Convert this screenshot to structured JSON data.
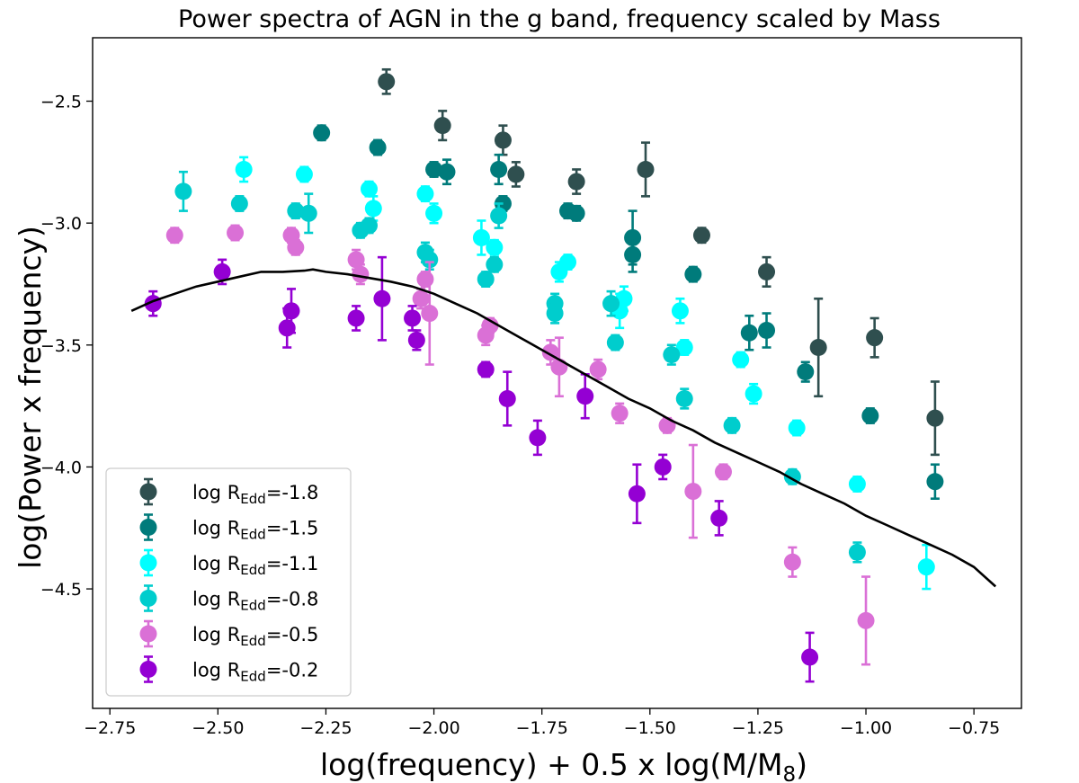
{
  "chart_data": {
    "type": "scatter",
    "title": "Power spectra of AGN in the g band, frequency scaled by Mass",
    "xlabel": {
      "main": "log(frequency) + 0.5 x log(M/M",
      "sub": "8",
      "close": ")"
    },
    "ylabel": "log(Power x frequency)",
    "xlim": [
      -2.79,
      -0.64
    ],
    "ylim": [
      -4.99,
      -2.24
    ],
    "xticks": [
      -2.75,
      -2.5,
      -2.25,
      -2.0,
      -1.75,
      -1.5,
      -1.25,
      -1.0,
      -0.75
    ],
    "xtick_labels": [
      "−2.75",
      "−2.50",
      "−2.25",
      "−2.00",
      "−1.75",
      "−1.50",
      "−1.25",
      "−1.00",
      "−0.75"
    ],
    "yticks": [
      -4.5,
      -4.0,
      -3.5,
      -3.0,
      -2.5
    ],
    "ytick_labels": [
      "−4.5",
      "−4.0",
      "−3.5",
      "−3.0",
      "−2.5"
    ],
    "legend_position": "lower-left",
    "legend_prefix": "log R",
    "legend_sub": "Edd",
    "curve": {
      "x": [
        -2.7,
        -2.65,
        -2.6,
        -2.55,
        -2.5,
        -2.45,
        -2.4,
        -2.35,
        -2.3,
        -2.28,
        -2.25,
        -2.2,
        -2.15,
        -2.1,
        -2.05,
        -2.0,
        -1.95,
        -1.9,
        -1.85,
        -1.8,
        -1.75,
        -1.7,
        -1.65,
        -1.6,
        -1.55,
        -1.5,
        -1.45,
        -1.4,
        -1.35,
        -1.3,
        -1.25,
        -1.2,
        -1.15,
        -1.1,
        -1.05,
        -1.0,
        -0.95,
        -0.9,
        -0.85,
        -0.8,
        -0.75,
        -0.7
      ],
      "y": [
        -3.36,
        -3.32,
        -3.29,
        -3.26,
        -3.24,
        -3.22,
        -3.2,
        -3.2,
        -3.195,
        -3.19,
        -3.2,
        -3.21,
        -3.225,
        -3.24,
        -3.26,
        -3.29,
        -3.33,
        -3.37,
        -3.42,
        -3.47,
        -3.52,
        -3.57,
        -3.62,
        -3.67,
        -3.72,
        -3.76,
        -3.81,
        -3.85,
        -3.9,
        -3.94,
        -3.98,
        -4.02,
        -4.07,
        -4.11,
        -4.15,
        -4.2,
        -4.24,
        -4.28,
        -4.32,
        -4.36,
        -4.41,
        -4.49
      ]
    },
    "series": [
      {
        "name": "-1.8",
        "color": "#2f4f4f",
        "points": [
          {
            "x": -2.11,
            "y": -2.42,
            "e": 0.05
          },
          {
            "x": -1.98,
            "y": -2.6,
            "e": 0.06
          },
          {
            "x": -1.84,
            "y": -2.66,
            "e": 0.06
          },
          {
            "x": -1.81,
            "y": -2.8,
            "e": 0.05
          },
          {
            "x": -1.67,
            "y": -2.83,
            "e": 0.05
          },
          {
            "x": -1.51,
            "y": -2.78,
            "e": 0.11
          },
          {
            "x": -1.38,
            "y": -3.05,
            "e": 0.03
          },
          {
            "x": -1.23,
            "y": -3.2,
            "e": 0.06
          },
          {
            "x": -1.11,
            "y": -3.51,
            "e": 0.2
          },
          {
            "x": -0.98,
            "y": -3.47,
            "e": 0.08
          },
          {
            "x": -0.84,
            "y": -3.8,
            "e": 0.15
          }
        ]
      },
      {
        "name": "-1.5",
        "color": "#007b7b",
        "points": [
          {
            "x": -2.26,
            "y": -2.63,
            "e": 0.03
          },
          {
            "x": -2.13,
            "y": -2.69,
            "e": 0.03
          },
          {
            "x": -2.0,
            "y": -2.78,
            "e": 0.03
          },
          {
            "x": -1.97,
            "y": -2.79,
            "e": 0.05
          },
          {
            "x": -1.85,
            "y": -2.78,
            "e": 0.06
          },
          {
            "x": -1.84,
            "y": -2.92,
            "e": 0.03
          },
          {
            "x": -1.69,
            "y": -2.95,
            "e": 0.03
          },
          {
            "x": -1.67,
            "y": -2.96,
            "e": 0.03
          },
          {
            "x": -1.54,
            "y": -3.06,
            "e": 0.11
          },
          {
            "x": -1.54,
            "y": -3.13,
            "e": 0.07
          },
          {
            "x": -1.4,
            "y": -3.21,
            "e": 0.03
          },
          {
            "x": -1.27,
            "y": -3.45,
            "e": 0.07
          },
          {
            "x": -1.23,
            "y": -3.44,
            "e": 0.07
          },
          {
            "x": -1.14,
            "y": -3.61,
            "e": 0.04
          },
          {
            "x": -0.99,
            "y": -3.79,
            "e": 0.03
          },
          {
            "x": -0.84,
            "y": -4.06,
            "e": 0.07
          }
        ]
      },
      {
        "name": "-1.1",
        "color": "#00ffff",
        "points": [
          {
            "x": -2.44,
            "y": -2.78,
            "e": 0.05
          },
          {
            "x": -2.3,
            "y": -2.8,
            "e": 0.03
          },
          {
            "x": -2.15,
            "y": -2.86,
            "e": 0.03
          },
          {
            "x": -2.14,
            "y": -2.94,
            "e": 0.05
          },
          {
            "x": -2.02,
            "y": -2.88,
            "e": 0.03
          },
          {
            "x": -2.0,
            "y": -2.96,
            "e": 0.04
          },
          {
            "x": -1.89,
            "y": -3.06,
            "e": 0.07
          },
          {
            "x": -1.86,
            "y": -3.1,
            "e": 0.03
          },
          {
            "x": -1.71,
            "y": -3.2,
            "e": 0.04
          },
          {
            "x": -1.69,
            "y": -3.16,
            "e": 0.03
          },
          {
            "x": -1.56,
            "y": -3.31,
            "e": 0.05
          },
          {
            "x": -1.57,
            "y": -3.36,
            "e": 0.07
          },
          {
            "x": -1.43,
            "y": -3.36,
            "e": 0.05
          },
          {
            "x": -1.42,
            "y": -3.51,
            "e": 0.03
          },
          {
            "x": -1.29,
            "y": -3.56,
            "e": 0.03
          },
          {
            "x": -1.26,
            "y": -3.7,
            "e": 0.04
          },
          {
            "x": -1.16,
            "y": -3.84,
            "e": 0.03
          },
          {
            "x": -1.02,
            "y": -4.07,
            "e": 0.03
          },
          {
            "x": -0.86,
            "y": -4.41,
            "e": 0.09
          }
        ]
      },
      {
        "name": "-0.8",
        "color": "#00cdcd",
        "points": [
          {
            "x": -2.58,
            "y": -2.87,
            "e": 0.08
          },
          {
            "x": -2.45,
            "y": -2.92,
            "e": 0.03
          },
          {
            "x": -2.32,
            "y": -2.95,
            "e": 0.03
          },
          {
            "x": -2.29,
            "y": -2.96,
            "e": 0.08
          },
          {
            "x": -2.17,
            "y": -3.03,
            "e": 0.03
          },
          {
            "x": -2.15,
            "y": -3.01,
            "e": 0.03
          },
          {
            "x": -2.02,
            "y": -3.12,
            "e": 0.04
          },
          {
            "x": -2.01,
            "y": -3.15,
            "e": 0.04
          },
          {
            "x": -1.88,
            "y": -3.23,
            "e": 0.03
          },
          {
            "x": -1.86,
            "y": -3.17,
            "e": 0.03
          },
          {
            "x": -1.85,
            "y": -2.97,
            "e": 0.05
          },
          {
            "x": -1.72,
            "y": -3.33,
            "e": 0.04
          },
          {
            "x": -1.72,
            "y": -3.37,
            "e": 0.04
          },
          {
            "x": -1.59,
            "y": -3.33,
            "e": 0.05
          },
          {
            "x": -1.58,
            "y": -3.49,
            "e": 0.03
          },
          {
            "x": -1.45,
            "y": -3.54,
            "e": 0.04
          },
          {
            "x": -1.42,
            "y": -3.72,
            "e": 0.04
          },
          {
            "x": -1.31,
            "y": -3.83,
            "e": 0.03
          },
          {
            "x": -1.17,
            "y": -4.04,
            "e": 0.03
          },
          {
            "x": -1.02,
            "y": -4.35,
            "e": 0.04
          }
        ]
      },
      {
        "name": "-0.5",
        "color": "#da70d6",
        "points": [
          {
            "x": -2.6,
            "y": -3.05,
            "e": 0.03
          },
          {
            "x": -2.46,
            "y": -3.04,
            "e": 0.03
          },
          {
            "x": -2.33,
            "y": -3.05,
            "e": 0.03
          },
          {
            "x": -2.32,
            "y": -3.1,
            "e": 0.03
          },
          {
            "x": -2.18,
            "y": -3.15,
            "e": 0.04
          },
          {
            "x": -2.17,
            "y": -3.21,
            "e": 0.04
          },
          {
            "x": -2.03,
            "y": -3.31,
            "e": 0.04
          },
          {
            "x": -2.02,
            "y": -3.23,
            "e": 0.03
          },
          {
            "x": -2.01,
            "y": -3.37,
            "e": 0.21
          },
          {
            "x": -1.88,
            "y": -3.46,
            "e": 0.04
          },
          {
            "x": -1.87,
            "y": -3.42,
            "e": 0.03
          },
          {
            "x": -1.73,
            "y": -3.53,
            "e": 0.05
          },
          {
            "x": -1.71,
            "y": -3.59,
            "e": 0.12
          },
          {
            "x": -1.62,
            "y": -3.6,
            "e": 0.04
          },
          {
            "x": -1.57,
            "y": -3.78,
            "e": 0.04
          },
          {
            "x": -1.46,
            "y": -3.83,
            "e": 0.03
          },
          {
            "x": -1.4,
            "y": -4.1,
            "e": 0.19
          },
          {
            "x": -1.33,
            "y": -4.02,
            "e": 0.03
          },
          {
            "x": -1.17,
            "y": -4.39,
            "e": 0.06
          },
          {
            "x": -1.0,
            "y": -4.63,
            "e": 0.18
          }
        ]
      },
      {
        "name": "-0.2",
        "color": "#9400d3",
        "points": [
          {
            "x": -2.65,
            "y": -3.33,
            "e": 0.05
          },
          {
            "x": -2.49,
            "y": -3.2,
            "e": 0.05
          },
          {
            "x": -2.34,
            "y": -3.43,
            "e": 0.08
          },
          {
            "x": -2.33,
            "y": -3.36,
            "e": 0.09
          },
          {
            "x": -2.18,
            "y": -3.39,
            "e": 0.05
          },
          {
            "x": -2.12,
            "y": -3.31,
            "e": 0.17
          },
          {
            "x": -2.05,
            "y": -3.39,
            "e": 0.05
          },
          {
            "x": -2.04,
            "y": -3.48,
            "e": 0.04
          },
          {
            "x": -1.88,
            "y": -3.6,
            "e": 0.03
          },
          {
            "x": -1.83,
            "y": -3.72,
            "e": 0.11
          },
          {
            "x": -1.76,
            "y": -3.88,
            "e": 0.07
          },
          {
            "x": -1.65,
            "y": -3.71,
            "e": 0.09
          },
          {
            "x": -1.53,
            "y": -4.11,
            "e": 0.12
          },
          {
            "x": -1.47,
            "y": -4.0,
            "e": 0.05
          },
          {
            "x": -1.34,
            "y": -4.21,
            "e": 0.07
          },
          {
            "x": -1.13,
            "y": -4.78,
            "e": 0.1
          }
        ]
      }
    ]
  }
}
